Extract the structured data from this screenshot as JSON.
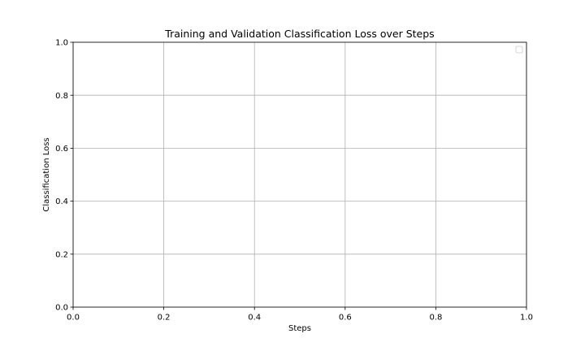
{
  "chart_data": {
    "type": "line",
    "title": "Training and Validation Classification Loss over Steps",
    "xlabel": "Steps",
    "ylabel": "Classification Loss",
    "xlim": [
      0.0,
      1.0
    ],
    "ylim": [
      0.0,
      1.0
    ],
    "xticks": [
      "0.0",
      "0.2",
      "0.4",
      "0.6",
      "0.8",
      "1.0"
    ],
    "yticks": [
      "0.0",
      "0.2",
      "0.4",
      "0.6",
      "0.8",
      "1.0"
    ],
    "xtick_values": [
      0.0,
      0.2,
      0.4,
      0.6,
      0.8,
      1.0
    ],
    "ytick_values": [
      0.0,
      0.2,
      0.4,
      0.6,
      0.8,
      1.0
    ],
    "grid": true,
    "legend": "top-right",
    "series": []
  }
}
